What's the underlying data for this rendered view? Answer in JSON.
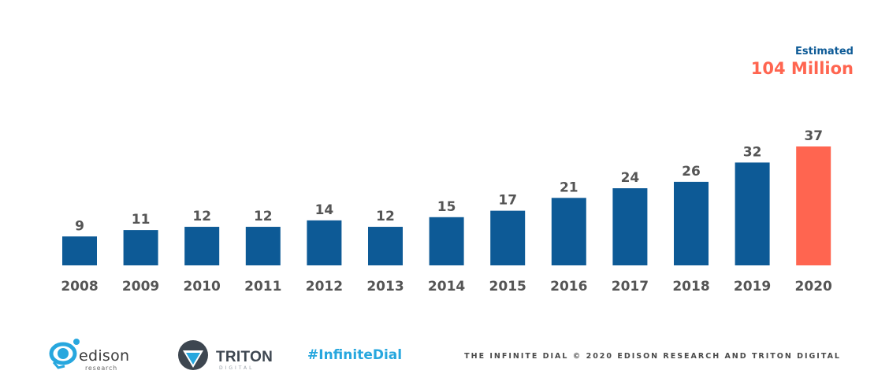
{
  "chart_data": {
    "type": "bar",
    "categories": [
      "2008",
      "2009",
      "2010",
      "2011",
      "2012",
      "2013",
      "2014",
      "2015",
      "2016",
      "2017",
      "2018",
      "2019",
      "2020"
    ],
    "values": [
      9,
      11,
      12,
      12,
      14,
      12,
      15,
      17,
      21,
      24,
      26,
      32,
      37
    ],
    "ylim": [
      0,
      37
    ],
    "grid": false,
    "colors": {
      "bar": "#0d5a96",
      "highlight_bar": "#ff6550",
      "label": "#555555"
    },
    "highlight_index": 12
  },
  "estimate": {
    "label": "Estimated",
    "value": "104 Million"
  },
  "footer": {
    "edison": {
      "name": "edison",
      "sub": "research"
    },
    "triton": {
      "name": "TRITON",
      "sub": "DIGITAL"
    },
    "hashtag": "#InfiniteDial",
    "copyright": "THE INFINITE DIAL   © 2020 EDISON RESEARCH AND TRITON DIGITAL"
  }
}
